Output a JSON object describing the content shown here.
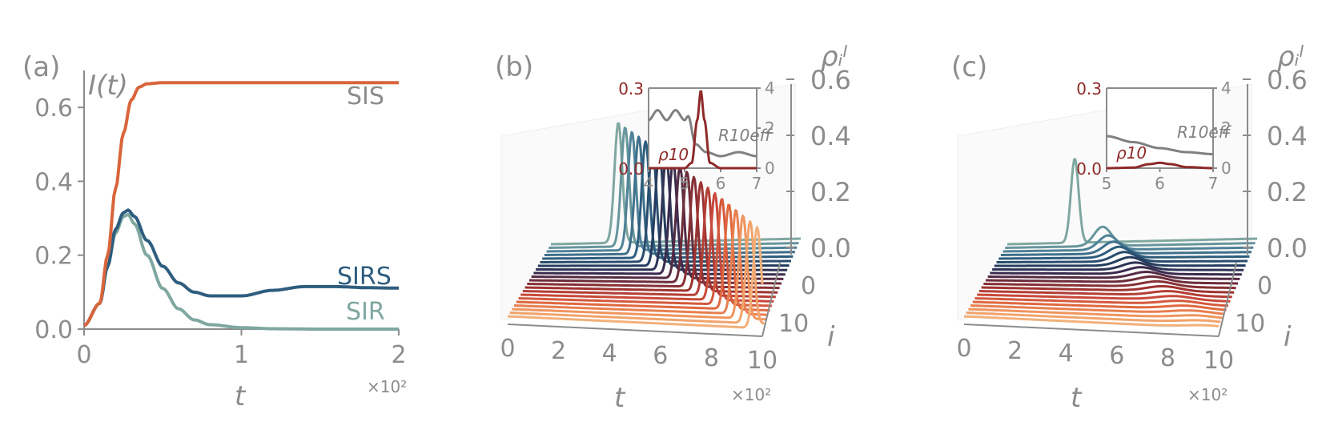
{
  "colors": {
    "axis": "#8c8c8c",
    "SIS": "#d9653b",
    "SIRS": "#2e5d7e",
    "SIR": "#7fa7a0",
    "inset_red": "#8e2a2a",
    "inset_gray": "#808080",
    "layer_gradient": [
      "#7fa7a0",
      "#4f8298",
      "#2e5d7e",
      "#243d5e",
      "#3a2a4e",
      "#6e2c3a",
      "#9e3330",
      "#c9493a",
      "#e0683f",
      "#ef955e",
      "#f2b07a"
    ]
  },
  "panel_a": {
    "label": "(a)",
    "ylabel": "I(t)",
    "xlabel": "t",
    "x_multiplier": "×10²",
    "xticks": [
      "0",
      "1",
      "2"
    ],
    "yticks": [
      "0.0",
      "0.2",
      "0.4",
      "0.6"
    ]
  },
  "panel_b": {
    "label": "(b)",
    "zlabel": "ρᵢˡ",
    "xlabel": "t",
    "ylabel": "i",
    "x_multiplier": "×10²",
    "xticks": [
      "0",
      "2",
      "4",
      "6",
      "8",
      "10"
    ],
    "yticks": [
      "0",
      "10"
    ],
    "zticks": [
      "0.0",
      "0.2",
      "0.4",
      "0.6"
    ],
    "inset": {
      "yticks_left": [
        "0.0",
        "0.3"
      ],
      "yticks_right": [
        "0",
        "2",
        "4"
      ],
      "xticks": [
        "4",
        "5",
        "6",
        "7"
      ],
      "series_label": "ρ10",
      "right_label": "R10eff"
    }
  },
  "panel_c": {
    "label": "(c)",
    "zlabel": "ρᵢˡ",
    "xlabel": "t",
    "ylabel": "i",
    "x_multiplier": "×10²",
    "xticks": [
      "0",
      "2",
      "4",
      "6",
      "8",
      "10"
    ],
    "yticks": [
      "0",
      "10"
    ],
    "zticks": [
      "0.0",
      "0.2",
      "0.4",
      "0.6"
    ],
    "inset": {
      "yticks_left": [
        "0.0",
        "0.3"
      ],
      "yticks_right": [
        "0",
        "2",
        "4"
      ],
      "xticks": [
        "5",
        "6",
        "7"
      ],
      "series_label": "ρ10",
      "right_label": "R10eff"
    }
  },
  "chart_data": [
    {
      "type": "line",
      "panel": "a",
      "xlabel": "t",
      "ylabel": "I(t)",
      "xlim": [
        0,
        200
      ],
      "ylim": [
        0,
        0.7
      ],
      "series": [
        {
          "name": "SIS",
          "x": [
            0,
            10,
            15,
            20,
            25,
            30,
            35,
            40,
            50,
            60,
            80,
            100,
            150,
            200
          ],
          "values": [
            0.01,
            0.07,
            0.2,
            0.38,
            0.53,
            0.62,
            0.655,
            0.664,
            0.667,
            0.667,
            0.667,
            0.667,
            0.667,
            0.667
          ]
        },
        {
          "name": "SIRS",
          "x": [
            0,
            10,
            15,
            20,
            25,
            28,
            32,
            40,
            50,
            60,
            70,
            80,
            100,
            120,
            140,
            160,
            180,
            200
          ],
          "values": [
            0.01,
            0.07,
            0.17,
            0.27,
            0.315,
            0.322,
            0.305,
            0.24,
            0.17,
            0.125,
            0.1,
            0.09,
            0.09,
            0.105,
            0.115,
            0.115,
            0.112,
            0.111
          ]
        },
        {
          "name": "SIR",
          "x": [
            0,
            10,
            15,
            20,
            25,
            28,
            32,
            40,
            50,
            60,
            70,
            80,
            100,
            120,
            150,
            200
          ],
          "values": [
            0.01,
            0.07,
            0.17,
            0.26,
            0.305,
            0.31,
            0.285,
            0.2,
            0.11,
            0.055,
            0.025,
            0.012,
            0.004,
            0.001,
            0,
            0
          ]
        }
      ]
    },
    {
      "type": "line",
      "panel": "b",
      "note_series": "21 layers i = 0..20 (ρᵢˡ vs t); the peak of layer i shifts with i",
      "xlim": [
        0,
        1000
      ],
      "zlim": [
        0,
        0.6
      ],
      "layers": 21,
      "peak_height": 0.5,
      "peak_time_first": 270,
      "peak_time_last": 980,
      "inset": {
        "xlim": [
          400,
          700
        ],
        "ylim_left": [
          0,
          0.3
        ],
        "ylim_right": [
          0,
          4
        ],
        "rho10": {
          "x": [
            400,
            500,
            520,
            535,
            545,
            555,
            570,
            600,
            700
          ],
          "values": [
            0,
            0,
            0.02,
            0.18,
            0.29,
            0.18,
            0.02,
            0,
            0
          ]
        },
        "R10eff": {
          "x": [
            400,
            425,
            450,
            475,
            500,
            510,
            530,
            560,
            600,
            650,
            700
          ],
          "values": [
            2.4,
            2.9,
            2.4,
            2.9,
            2.4,
            2.6,
            1.2,
            0.8,
            0.6,
            0.8,
            0.6
          ]
        }
      }
    },
    {
      "type": "line",
      "panel": "c",
      "note_series": "21 layers i = 0..20 (ρᵢˡ vs t); only layer 0 shows a strong peak, later peaks decay",
      "xlim": [
        0,
        1000
      ],
      "zlim": [
        0,
        0.6
      ],
      "layers": 21,
      "peak_heights": [
        0.35,
        0.08,
        0.06,
        0.05,
        0.045,
        0.04,
        0.035,
        0.03,
        0.028,
        0.026,
        0.024,
        0.022,
        0.02,
        0.018,
        0.016,
        0.015,
        0.014,
        0.013,
        0.012,
        0.011,
        0.01
      ],
      "inset": {
        "xlim": [
          500,
          700
        ],
        "ylim_left": [
          0,
          0.3
        ],
        "ylim_right": [
          0,
          4
        ],
        "rho10": {
          "x": [
            500,
            550,
            580,
            600,
            620,
            650,
            700
          ],
          "values": [
            0,
            0.002,
            0.015,
            0.02,
            0.015,
            0.004,
            0
          ]
        },
        "R10eff": {
          "x": [
            500,
            550,
            600,
            650,
            700
          ],
          "values": [
            1.6,
            1.3,
            1.0,
            0.8,
            0.7
          ]
        }
      }
    }
  ]
}
